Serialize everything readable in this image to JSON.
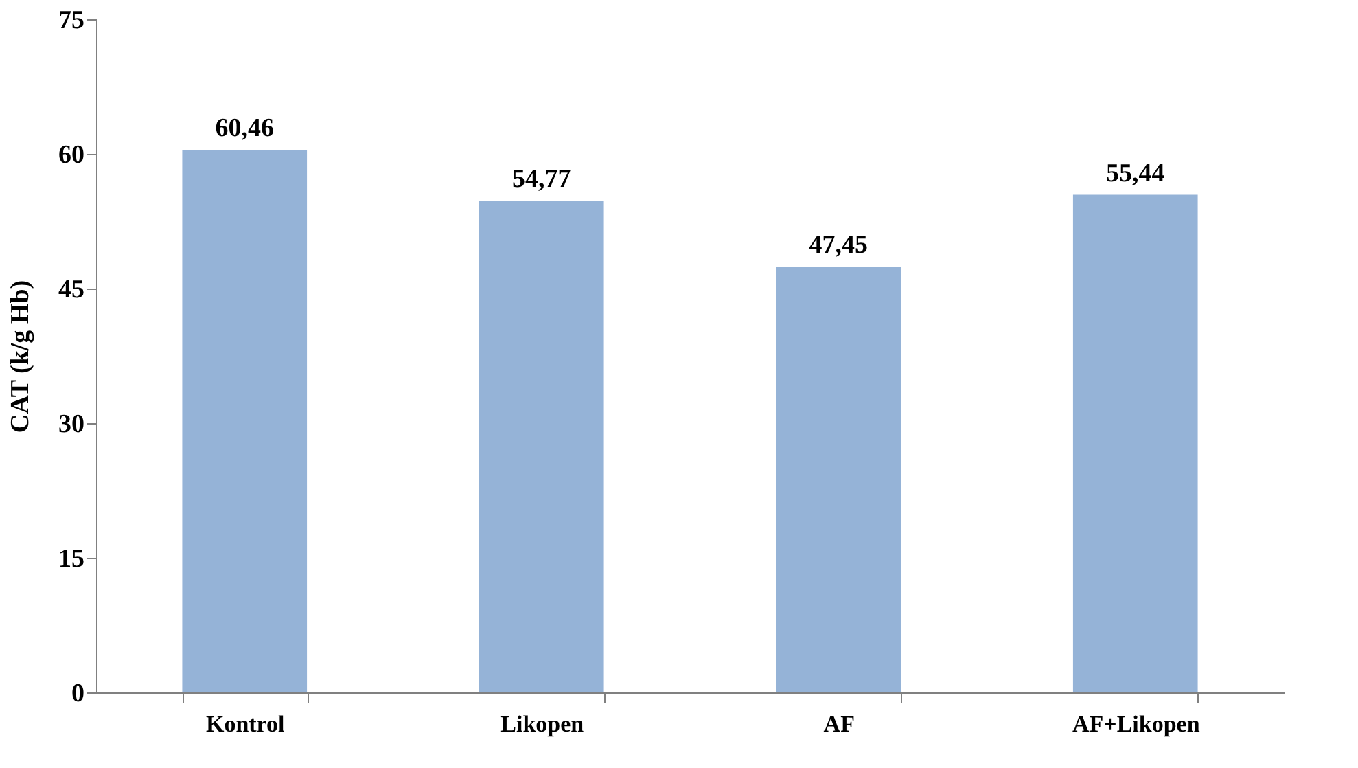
{
  "chart_data": {
    "type": "bar",
    "ylabel": "CAT  (k/g Hb)",
    "categories": [
      "Kontrol",
      "Likopen",
      "AF",
      "AF+Likopen"
    ],
    "values": [
      60.46,
      54.77,
      47.45,
      55.44
    ],
    "value_labels": [
      "60,46",
      "54,77",
      "47,45",
      "55,44"
    ],
    "color": "#95b3d7",
    "ylim": [
      0,
      75
    ],
    "yticks": [
      0,
      15,
      30,
      45,
      60,
      75
    ],
    "grid": false
  }
}
